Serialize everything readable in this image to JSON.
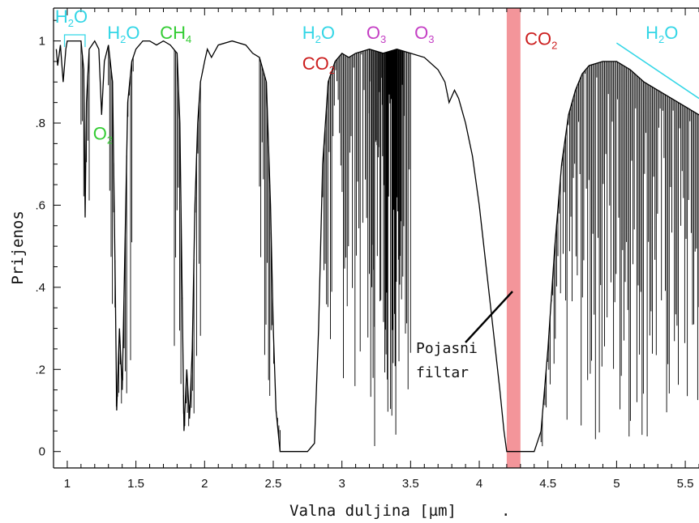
{
  "chart_data": {
    "type": "line",
    "xlabel": "Valna duljina [µm]",
    "xlabel_suffix": ".",
    "ylabel": "Prijenos",
    "xlim": [
      0.9,
      5.6
    ],
    "ylim": [
      -0.04,
      1.08
    ],
    "x_ticks": [
      {
        "value": 1,
        "label": "1"
      },
      {
        "value": 1.5,
        "label": "1.5"
      },
      {
        "value": 2,
        "label": "2"
      },
      {
        "value": 2.5,
        "label": "2.5"
      },
      {
        "value": 3,
        "label": "3"
      },
      {
        "value": 3.5,
        "label": "3.5"
      },
      {
        "value": 4,
        "label": "4"
      },
      {
        "value": 4.5,
        "label": "4.5"
      },
      {
        "value": 5,
        "label": "5"
      },
      {
        "value": 5.5,
        "label": "5.5"
      }
    ],
    "y_ticks": [
      {
        "value": 0,
        "label": "0"
      },
      {
        "value": 0.2,
        "label": ".2"
      },
      {
        "value": 0.4,
        "label": ".4"
      },
      {
        "value": 0.6,
        "label": ".6"
      },
      {
        "value": 0.8,
        "label": ".8"
      },
      {
        "value": 1,
        "label": "1"
      }
    ],
    "grid": false,
    "legend": "none",
    "series": [
      {
        "color": "#000000",
        "points": [
          [
            0.92,
            0.98
          ],
          [
            0.93,
            0.94
          ],
          [
            0.95,
            0.99
          ],
          [
            0.97,
            0.9
          ],
          [
            0.99,
            0.98
          ],
          [
            1.0,
            1.0
          ],
          [
            1.05,
            1.0
          ],
          [
            1.1,
            1.0
          ],
          [
            1.12,
            0.93
          ],
          [
            1.13,
            0.57
          ],
          [
            1.14,
            0.85
          ],
          [
            1.16,
            0.98
          ],
          [
            1.2,
            1.0
          ],
          [
            1.23,
            0.98
          ],
          [
            1.25,
            0.82
          ],
          [
            1.27,
            0.95
          ],
          [
            1.3,
            0.99
          ],
          [
            1.33,
            0.9
          ],
          [
            1.35,
            0.4
          ],
          [
            1.36,
            0.1
          ],
          [
            1.38,
            0.3
          ],
          [
            1.4,
            0.15
          ],
          [
            1.42,
            0.5
          ],
          [
            1.44,
            0.85
          ],
          [
            1.47,
            0.95
          ],
          [
            1.5,
            0.98
          ],
          [
            1.55,
            1.0
          ],
          [
            1.6,
            1.0
          ],
          [
            1.65,
            0.99
          ],
          [
            1.7,
            1.0
          ],
          [
            1.75,
            0.99
          ],
          [
            1.8,
            0.97
          ],
          [
            1.82,
            0.8
          ],
          [
            1.84,
            0.3
          ],
          [
            1.85,
            0.05
          ],
          [
            1.87,
            0.2
          ],
          [
            1.89,
            0.08
          ],
          [
            1.91,
            0.25
          ],
          [
            1.93,
            0.6
          ],
          [
            1.95,
            0.8
          ],
          [
            1.97,
            0.9
          ],
          [
            2.0,
            0.95
          ],
          [
            2.02,
            0.98
          ],
          [
            2.05,
            0.96
          ],
          [
            2.1,
            0.99
          ],
          [
            2.2,
            1.0
          ],
          [
            2.3,
            0.99
          ],
          [
            2.35,
            0.97
          ],
          [
            2.4,
            0.96
          ],
          [
            2.45,
            0.9
          ],
          [
            2.48,
            0.6
          ],
          [
            2.5,
            0.3
          ],
          [
            2.52,
            0.1
          ],
          [
            2.55,
            0.0
          ],
          [
            2.6,
            0.0
          ],
          [
            2.7,
            0.0
          ],
          [
            2.75,
            0.0
          ],
          [
            2.8,
            0.02
          ],
          [
            2.83,
            0.3
          ],
          [
            2.86,
            0.7
          ],
          [
            2.9,
            0.9
          ],
          [
            2.95,
            0.95
          ],
          [
            3.0,
            0.97
          ],
          [
            3.05,
            0.96
          ],
          [
            3.1,
            0.97
          ],
          [
            3.2,
            0.98
          ],
          [
            3.3,
            0.97
          ],
          [
            3.4,
            0.98
          ],
          [
            3.5,
            0.97
          ],
          [
            3.6,
            0.96
          ],
          [
            3.7,
            0.93
          ],
          [
            3.75,
            0.9
          ],
          [
            3.78,
            0.85
          ],
          [
            3.82,
            0.88
          ],
          [
            3.85,
            0.86
          ],
          [
            3.9,
            0.8
          ],
          [
            3.95,
            0.72
          ],
          [
            4.0,
            0.6
          ],
          [
            4.05,
            0.45
          ],
          [
            4.1,
            0.3
          ],
          [
            4.15,
            0.15
          ],
          [
            4.18,
            0.05
          ],
          [
            4.2,
            0.0
          ],
          [
            4.3,
            0.0
          ],
          [
            4.4,
            0.0
          ],
          [
            4.45,
            0.05
          ],
          [
            4.5,
            0.25
          ],
          [
            4.55,
            0.5
          ],
          [
            4.6,
            0.7
          ],
          [
            4.65,
            0.82
          ],
          [
            4.7,
            0.88
          ],
          [
            4.75,
            0.92
          ],
          [
            4.8,
            0.94
          ],
          [
            4.9,
            0.95
          ],
          [
            5.0,
            0.95
          ],
          [
            5.1,
            0.93
          ],
          [
            5.2,
            0.9
          ],
          [
            5.3,
            0.88
          ],
          [
            5.4,
            0.86
          ],
          [
            5.5,
            0.84
          ],
          [
            5.6,
            0.82
          ]
        ],
        "absorption_bands": [
          {
            "from": 1.1,
            "to": 1.16,
            "min": 0.57
          },
          {
            "from": 1.3,
            "to": 1.48,
            "min": 0.1
          },
          {
            "from": 1.78,
            "to": 1.97,
            "min": 0.05
          },
          {
            "from": 2.4,
            "to": 2.55,
            "min": 0.1
          },
          {
            "from": 2.86,
            "to": 3.5,
            "min": 0.15
          },
          {
            "from": 3.2,
            "to": 3.45,
            "min": 0.0
          },
          {
            "from": 4.45,
            "to": 5.6,
            "min": 0.0
          }
        ]
      }
    ],
    "gas_labels": [
      {
        "base": "H",
        "sub": "2",
        "rest": "O",
        "color": "#33d6e6",
        "x": 1.03,
        "y": 1.045
      },
      {
        "base": "H",
        "sub": "2",
        "rest": "O",
        "color": "#33d6e6",
        "x": 1.41,
        "y": 1.005
      },
      {
        "base": "CH",
        "sub": "4",
        "rest": "",
        "color": "#33cc33",
        "x": 1.79,
        "y": 1.005
      },
      {
        "base": "O",
        "sub": "2",
        "rest": "",
        "color": "#33cc33",
        "x": 1.26,
        "y": 0.76
      },
      {
        "base": "H",
        "sub": "2",
        "rest": "O",
        "color": "#33d6e6",
        "x": 2.83,
        "y": 1.005
      },
      {
        "base": "CO",
        "sub": "2",
        "rest": "",
        "color": "#cc1f1f",
        "x": 2.83,
        "y": 0.93
      },
      {
        "base": "O",
        "sub": "3",
        "rest": "",
        "color": "#c43fc4",
        "x": 3.25,
        "y": 1.005
      },
      {
        "base": "O",
        "sub": "3",
        "rest": "",
        "color": "#c43fc4",
        "x": 3.6,
        "y": 1.005
      },
      {
        "base": "CO",
        "sub": "2",
        "rest": "",
        "color": "#cc1f1f",
        "x": 4.45,
        "y": 0.99
      },
      {
        "base": "H",
        "sub": "2",
        "rest": "O",
        "color": "#33d6e6",
        "x": 5.33,
        "y": 1.005
      }
    ],
    "filter_band": {
      "from": 4.2,
      "to": 4.3,
      "color": "#f28a8f"
    },
    "annotation": {
      "text_line1": "Pojasni",
      "text_line2": "filtar"
    }
  }
}
